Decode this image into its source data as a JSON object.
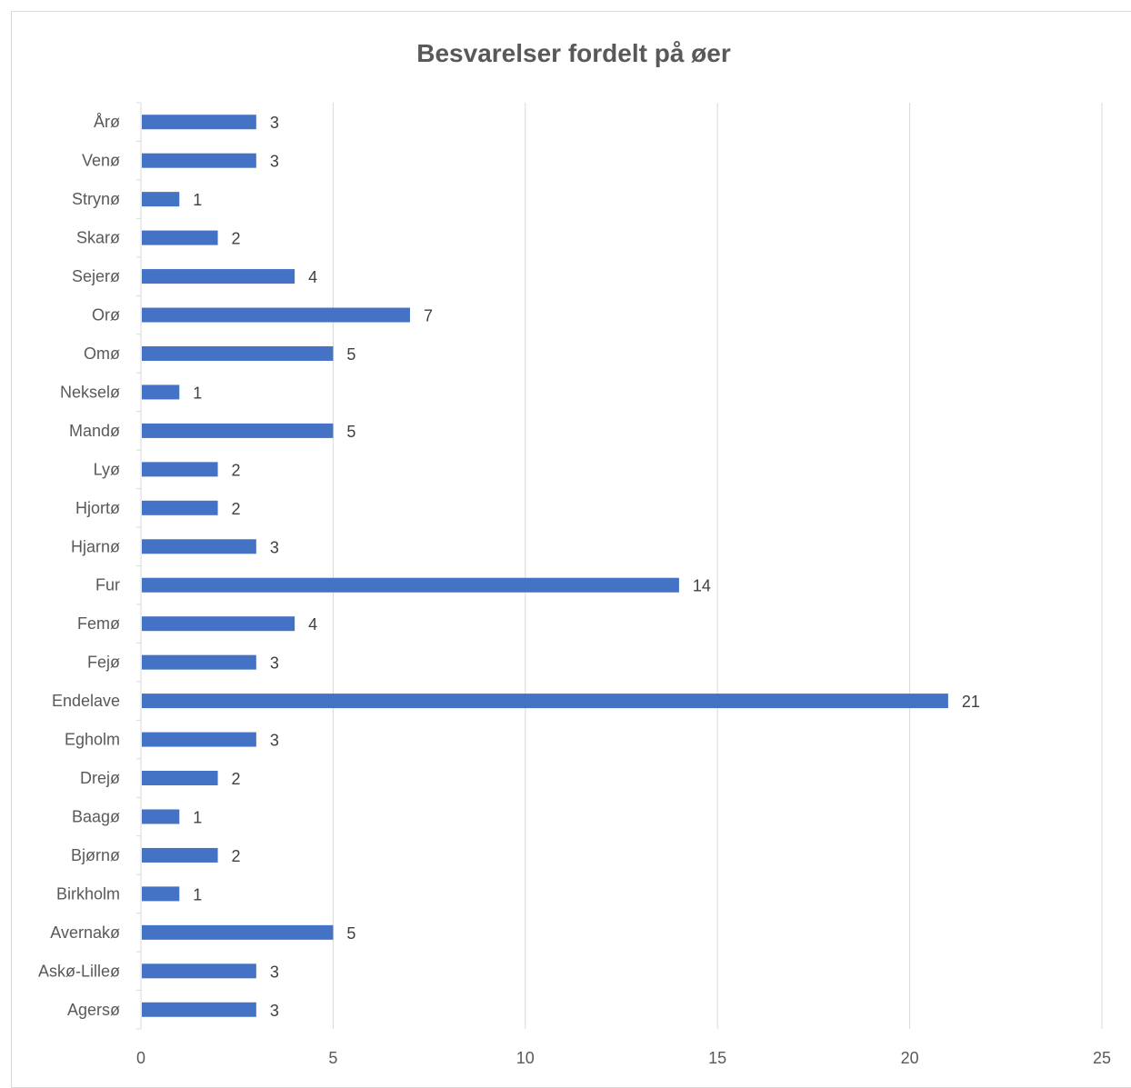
{
  "chart_data": {
    "type": "bar",
    "orientation": "horizontal",
    "title": "Besvarelser fordelt på øer",
    "categories": [
      "Agersø",
      "Askø-Lilleø",
      "Avernakø",
      "Birkholm",
      "Bjørnø",
      "Baagø",
      "Drejø",
      "Egholm",
      "Endelave",
      "Fejø",
      "Femø",
      "Fur",
      "Hjarnø",
      "Hjortø",
      "Lyø",
      "Mandø",
      "Nekselø",
      "Omø",
      "Orø",
      "Sejerø",
      "Skarø",
      "Strynø",
      "Venø",
      "Årø"
    ],
    "values": [
      3,
      3,
      5,
      1,
      2,
      1,
      2,
      3,
      21,
      3,
      4,
      14,
      3,
      2,
      2,
      5,
      1,
      5,
      7,
      4,
      2,
      1,
      3,
      3
    ],
    "xlim": [
      0,
      25
    ],
    "x_ticks": [
      0,
      5,
      10,
      15,
      20,
      25
    ],
    "grid": true,
    "data_labels": true,
    "bar_color": "#4472c4",
    "grid_color": "#d9d9d9",
    "text_color": "#595959"
  }
}
